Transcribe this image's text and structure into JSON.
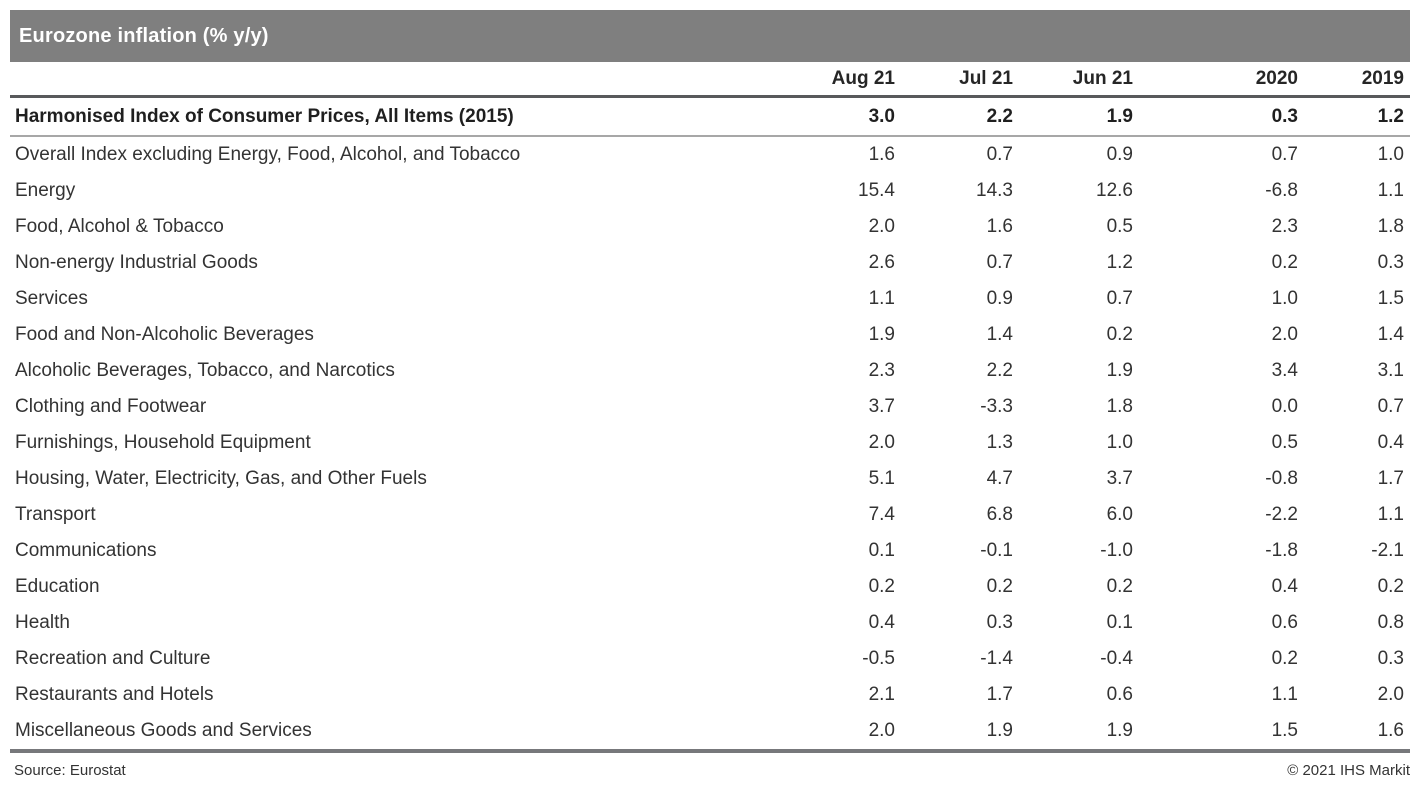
{
  "title": "Eurozone inflation (% y/y)",
  "table": {
    "columns": [
      "Aug 21",
      "Jul 21",
      "Jun 21",
      "2020",
      "2019"
    ],
    "rows": [
      {
        "label": "Harmonised Index of Consumer Prices, All Items (2015)",
        "bold": true,
        "values": [
          "3.0",
          "2.2",
          "1.9",
          "0.3",
          "1.2"
        ]
      },
      {
        "label": "Overall Index excluding Energy, Food, Alcohol, and Tobacco",
        "values": [
          "1.6",
          "0.7",
          "0.9",
          "0.7",
          "1.0"
        ]
      },
      {
        "label": "Energy",
        "values": [
          "15.4",
          "14.3",
          "12.6",
          "-6.8",
          "1.1"
        ]
      },
      {
        "label": "Food, Alcohol & Tobacco",
        "values": [
          "2.0",
          "1.6",
          "0.5",
          "2.3",
          "1.8"
        ]
      },
      {
        "label": "Non-energy Industrial Goods",
        "values": [
          "2.6",
          "0.7",
          "1.2",
          "0.2",
          "0.3"
        ]
      },
      {
        "label": "Services",
        "values": [
          "1.1",
          "0.9",
          "0.7",
          "1.0",
          "1.5"
        ]
      },
      {
        "label": "Food and Non-Alcoholic Beverages",
        "values": [
          "1.9",
          "1.4",
          "0.2",
          "2.0",
          "1.4"
        ]
      },
      {
        "label": "Alcoholic Beverages, Tobacco, and Narcotics",
        "values": [
          "2.3",
          "2.2",
          "1.9",
          "3.4",
          "3.1"
        ]
      },
      {
        "label": "Clothing and Footwear",
        "values": [
          "3.7",
          "-3.3",
          "1.8",
          "0.0",
          "0.7"
        ]
      },
      {
        "label": "Furnishings, Household Equipment",
        "values": [
          "2.0",
          "1.3",
          "1.0",
          "0.5",
          "0.4"
        ]
      },
      {
        "label": "Housing, Water, Electricity, Gas, and Other Fuels",
        "values": [
          "5.1",
          "4.7",
          "3.7",
          "-0.8",
          "1.7"
        ]
      },
      {
        "label": "Transport",
        "values": [
          "7.4",
          "6.8",
          "6.0",
          "-2.2",
          "1.1"
        ]
      },
      {
        "label": "Communications",
        "values": [
          "0.1",
          "-0.1",
          "-1.0",
          "-1.8",
          "-2.1"
        ]
      },
      {
        "label": "Education",
        "values": [
          "0.2",
          "0.2",
          "0.2",
          "0.4",
          "0.2"
        ]
      },
      {
        "label": "Health",
        "values": [
          "0.4",
          "0.3",
          "0.1",
          "0.6",
          "0.8"
        ]
      },
      {
        "label": "Recreation and Culture",
        "values": [
          "-0.5",
          "-1.4",
          "-0.4",
          "0.2",
          "0.3"
        ]
      },
      {
        "label": "Restaurants and Hotels",
        "values": [
          "2.1",
          "1.7",
          "0.6",
          "1.1",
          "2.0"
        ]
      },
      {
        "label": "Miscellaneous Goods and Services",
        "values": [
          "2.0",
          "1.9",
          "1.9",
          "1.5",
          "1.6"
        ]
      }
    ]
  },
  "footer": {
    "source": "Source: Eurostat",
    "copyright": "© 2021 IHS Markit"
  },
  "colors": {
    "title_bar_bg": "#7f7f7f",
    "title_text": "#ffffff",
    "body_text": "#333333",
    "header_rule": "#58595b",
    "bold_row_rule": "#a7a7a7",
    "bottom_rule": "#77787b"
  },
  "chart_data": {
    "type": "table",
    "title": "Eurozone inflation (% y/y)",
    "unit": "% y/y",
    "columns": [
      "Aug 21",
      "Jul 21",
      "Jun 21",
      "2020",
      "2019"
    ],
    "rows": [
      [
        "Harmonised Index of Consumer Prices, All Items (2015)",
        3.0,
        2.2,
        1.9,
        0.3,
        1.2
      ],
      [
        "Overall Index excluding Energy, Food, Alcohol, and Tobacco",
        1.6,
        0.7,
        0.9,
        0.7,
        1.0
      ],
      [
        "Energy",
        15.4,
        14.3,
        12.6,
        -6.8,
        1.1
      ],
      [
        "Food, Alcohol & Tobacco",
        2.0,
        1.6,
        0.5,
        2.3,
        1.8
      ],
      [
        "Non-energy Industrial Goods",
        2.6,
        0.7,
        1.2,
        0.2,
        0.3
      ],
      [
        "Services",
        1.1,
        0.9,
        0.7,
        1.0,
        1.5
      ],
      [
        "Food and Non-Alcoholic Beverages",
        1.9,
        1.4,
        0.2,
        2.0,
        1.4
      ],
      [
        "Alcoholic Beverages, Tobacco, and Narcotics",
        2.3,
        2.2,
        1.9,
        3.4,
        3.1
      ],
      [
        "Clothing and Footwear",
        3.7,
        -3.3,
        1.8,
        0.0,
        0.7
      ],
      [
        "Furnishings, Household Equipment",
        2.0,
        1.3,
        1.0,
        0.5,
        0.4
      ],
      [
        "Housing, Water, Electricity, Gas, and Other Fuels",
        5.1,
        4.7,
        3.7,
        -0.8,
        1.7
      ],
      [
        "Transport",
        7.4,
        6.8,
        6.0,
        -2.2,
        1.1
      ],
      [
        "Communications",
        0.1,
        -0.1,
        -1.0,
        -1.8,
        -2.1
      ],
      [
        "Education",
        0.2,
        0.2,
        0.2,
        0.4,
        0.2
      ],
      [
        "Health",
        0.4,
        0.3,
        0.1,
        0.6,
        0.8
      ],
      [
        "Recreation and Culture",
        -0.5,
        -1.4,
        -0.4,
        0.2,
        0.3
      ],
      [
        "Restaurants and Hotels",
        2.1,
        1.7,
        0.6,
        1.1,
        2.0
      ],
      [
        "Miscellaneous Goods and Services",
        2.0,
        1.9,
        1.9,
        1.5,
        1.6
      ]
    ],
    "source": "Source: Eurostat",
    "copyright": "© 2021 IHS Markit"
  }
}
